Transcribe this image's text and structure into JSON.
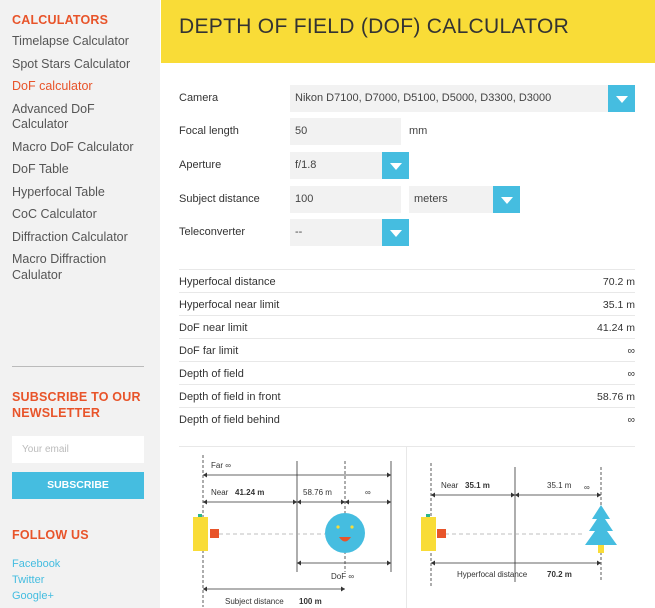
{
  "sidebar": {
    "heading": "CALCULATORS",
    "items": [
      {
        "label": "Timelapse Calculator"
      },
      {
        "label": "Spot Stars Calculator"
      },
      {
        "label": "DoF calculator"
      },
      {
        "label": "Advanced DoF Calculator"
      },
      {
        "label": "Macro DoF Calculator"
      },
      {
        "label": "DoF Table"
      },
      {
        "label": "Hyperfocal Table"
      },
      {
        "label": "CoC Calculator"
      },
      {
        "label": "Diffraction Calculator"
      },
      {
        "label": "Macro Diffraction Calulator"
      }
    ],
    "active_index": 2,
    "subscribe": {
      "heading": "SUBSCRIBE TO OUR NEWSLETTER",
      "email_placeholder": "Your email",
      "button": "SUBSCRIBE"
    },
    "follow": {
      "heading": "FOLLOW US",
      "links": [
        "Facebook",
        "Twitter",
        "Google+"
      ]
    }
  },
  "main": {
    "title": "DEPTH OF FIELD (DOF) CALCULATOR",
    "form": {
      "camera": {
        "label": "Camera",
        "value": "Nikon D7100, D7000, D5100, D5000, D3300, D3000"
      },
      "focal_length": {
        "label": "Focal length",
        "value": "50",
        "unit": "mm"
      },
      "aperture": {
        "label": "Aperture",
        "value": "f/1.8"
      },
      "subject_distance": {
        "label": "Subject distance",
        "value": "100",
        "unit": "meters"
      },
      "teleconverter": {
        "label": "Teleconverter",
        "value": "--"
      }
    },
    "results": [
      {
        "label": "Hyperfocal distance",
        "value": "70.2 m"
      },
      {
        "label": "Hyperfocal near limit",
        "value": "35.1 m"
      },
      {
        "label": "DoF near limit",
        "value": "41.24 m"
      },
      {
        "label": "DoF far limit",
        "value": "∞"
      },
      {
        "label": "Depth of field",
        "value": "∞"
      },
      {
        "label": "Depth of field in front",
        "value": "58.76 m"
      },
      {
        "label": "Depth of field behind",
        "value": "∞"
      }
    ]
  },
  "diagram_dof": {
    "far_label": "Far ∞",
    "near_label": "Near",
    "near_value": "41.24 m",
    "front_value": "58.76 m",
    "behind_value": "∞",
    "dof_label": "DoF ∞",
    "subject_label": "Subject distance",
    "subject_value": "100 m",
    "camera_color": "#f9dc37",
    "lens_color": "#e8542a",
    "face_color": "#45bde0"
  },
  "diagram_hyperfocal": {
    "near_label": "Near",
    "near_value": "35.1 m",
    "mid_value": "35.1 m",
    "infinity_symbol": "∞",
    "hyperfocal_label": "Hyperfocal distance",
    "hyperfocal_value": "70.2 m",
    "tree_color": "#45bde0"
  }
}
